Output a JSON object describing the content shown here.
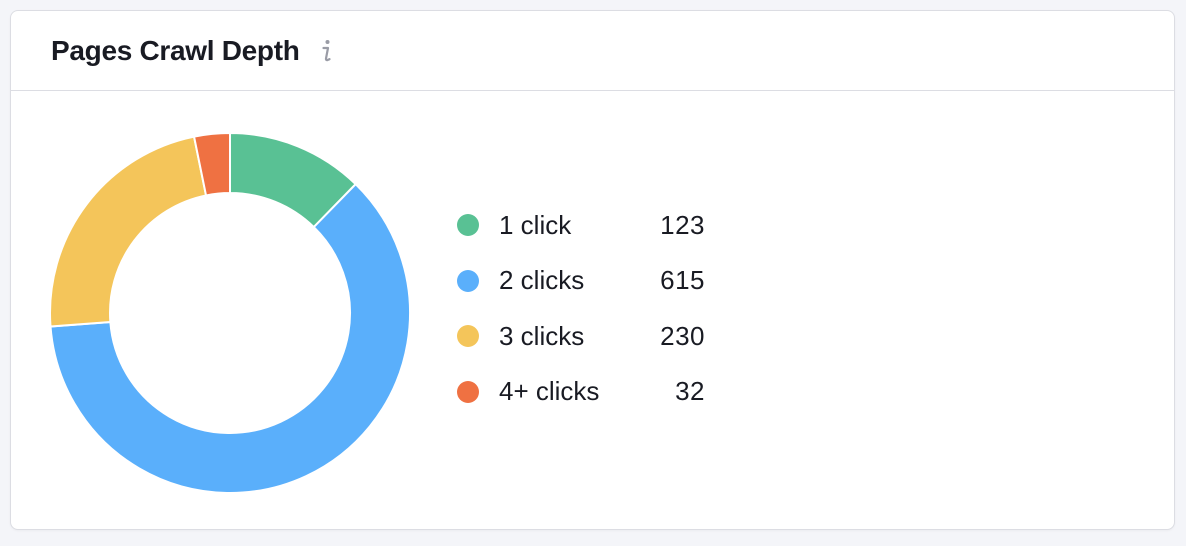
{
  "widget": {
    "title": "Pages Crawl Depth"
  },
  "icons": {
    "info": "info-icon"
  },
  "chart_data": {
    "type": "pie",
    "variant": "donut",
    "categories": [
      "1 click",
      "2 clicks",
      "3 clicks",
      "4+ clicks"
    ],
    "values": [
      123,
      615,
      230,
      32
    ],
    "colors": [
      "#59c194",
      "#5aaffb",
      "#f4c55a",
      "#ef7142"
    ],
    "legend_position": "right"
  }
}
